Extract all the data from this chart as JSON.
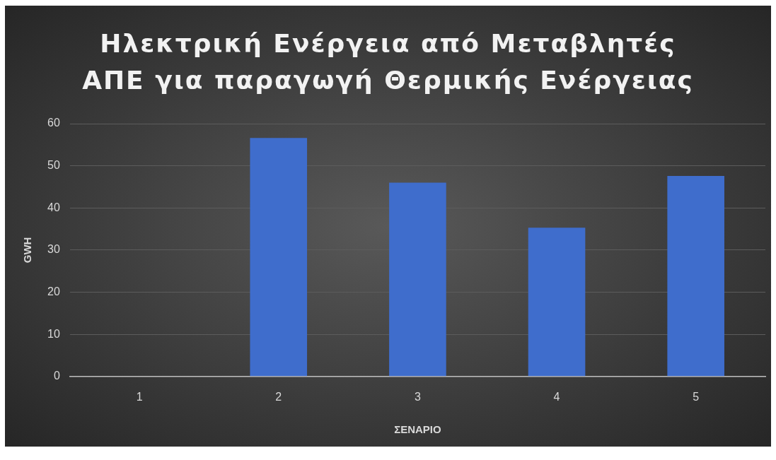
{
  "chart_data": {
    "type": "bar",
    "title": "Ηλεκτρική Ενέργεια από Μεταβλητές ΑΠΕ για παραγωγή Θερμικής Ενέργειας",
    "xlabel": "ΣΕΝΑΡΙΟ",
    "ylabel": "GWH",
    "categories": [
      "1",
      "2",
      "3",
      "4",
      "5"
    ],
    "series": [
      {
        "color": "#3f6dcc",
        "values": [
          0,
          56.6,
          46.0,
          35.3,
          47.6
        ]
      }
    ],
    "ylim": [
      0,
      60
    ],
    "yticks": [
      0,
      10,
      20,
      30,
      40,
      50,
      60
    ],
    "grid": "y"
  }
}
